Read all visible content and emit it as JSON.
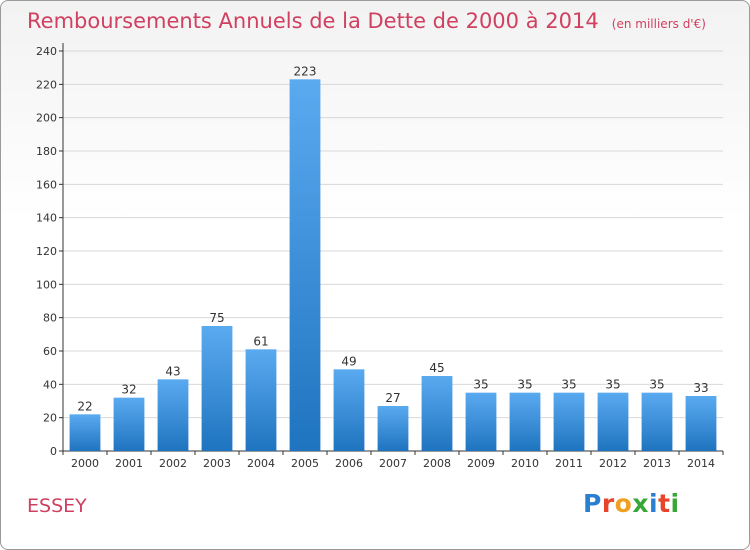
{
  "title": "Remboursements Annuels de la Dette de 2000 à 2014",
  "unit": "(en milliers d'€)",
  "commune": "ESSEY",
  "logo": {
    "text": "Proxiti",
    "colors": [
      "#2a7fd0",
      "#e8442a",
      "#f0a020",
      "#37a837",
      "#2a7fd0",
      "#e8442a",
      "#37a837"
    ]
  },
  "colors": {
    "bar_top": "#5aaaf0",
    "bar_bottom": "#1f74bf",
    "title": "#d04060",
    "grid": "#d8d8d8"
  },
  "chart_data": {
    "type": "bar",
    "categories": [
      "2000",
      "2001",
      "2002",
      "2003",
      "2004",
      "2005",
      "2006",
      "2007",
      "2008",
      "2009",
      "2010",
      "2011",
      "2012",
      "2013",
      "2014"
    ],
    "values": [
      22,
      32,
      43,
      75,
      61,
      223,
      49,
      27,
      45,
      35,
      35,
      35,
      35,
      35,
      33
    ],
    "title": "Remboursements Annuels de la Dette de 2000 à 2014",
    "xlabel": "",
    "ylabel": "",
    "ylim": [
      0,
      240
    ],
    "yticks": [
      0,
      20,
      40,
      60,
      80,
      100,
      120,
      140,
      160,
      180,
      200,
      220,
      240
    ],
    "grid": true,
    "data_labels": true
  }
}
